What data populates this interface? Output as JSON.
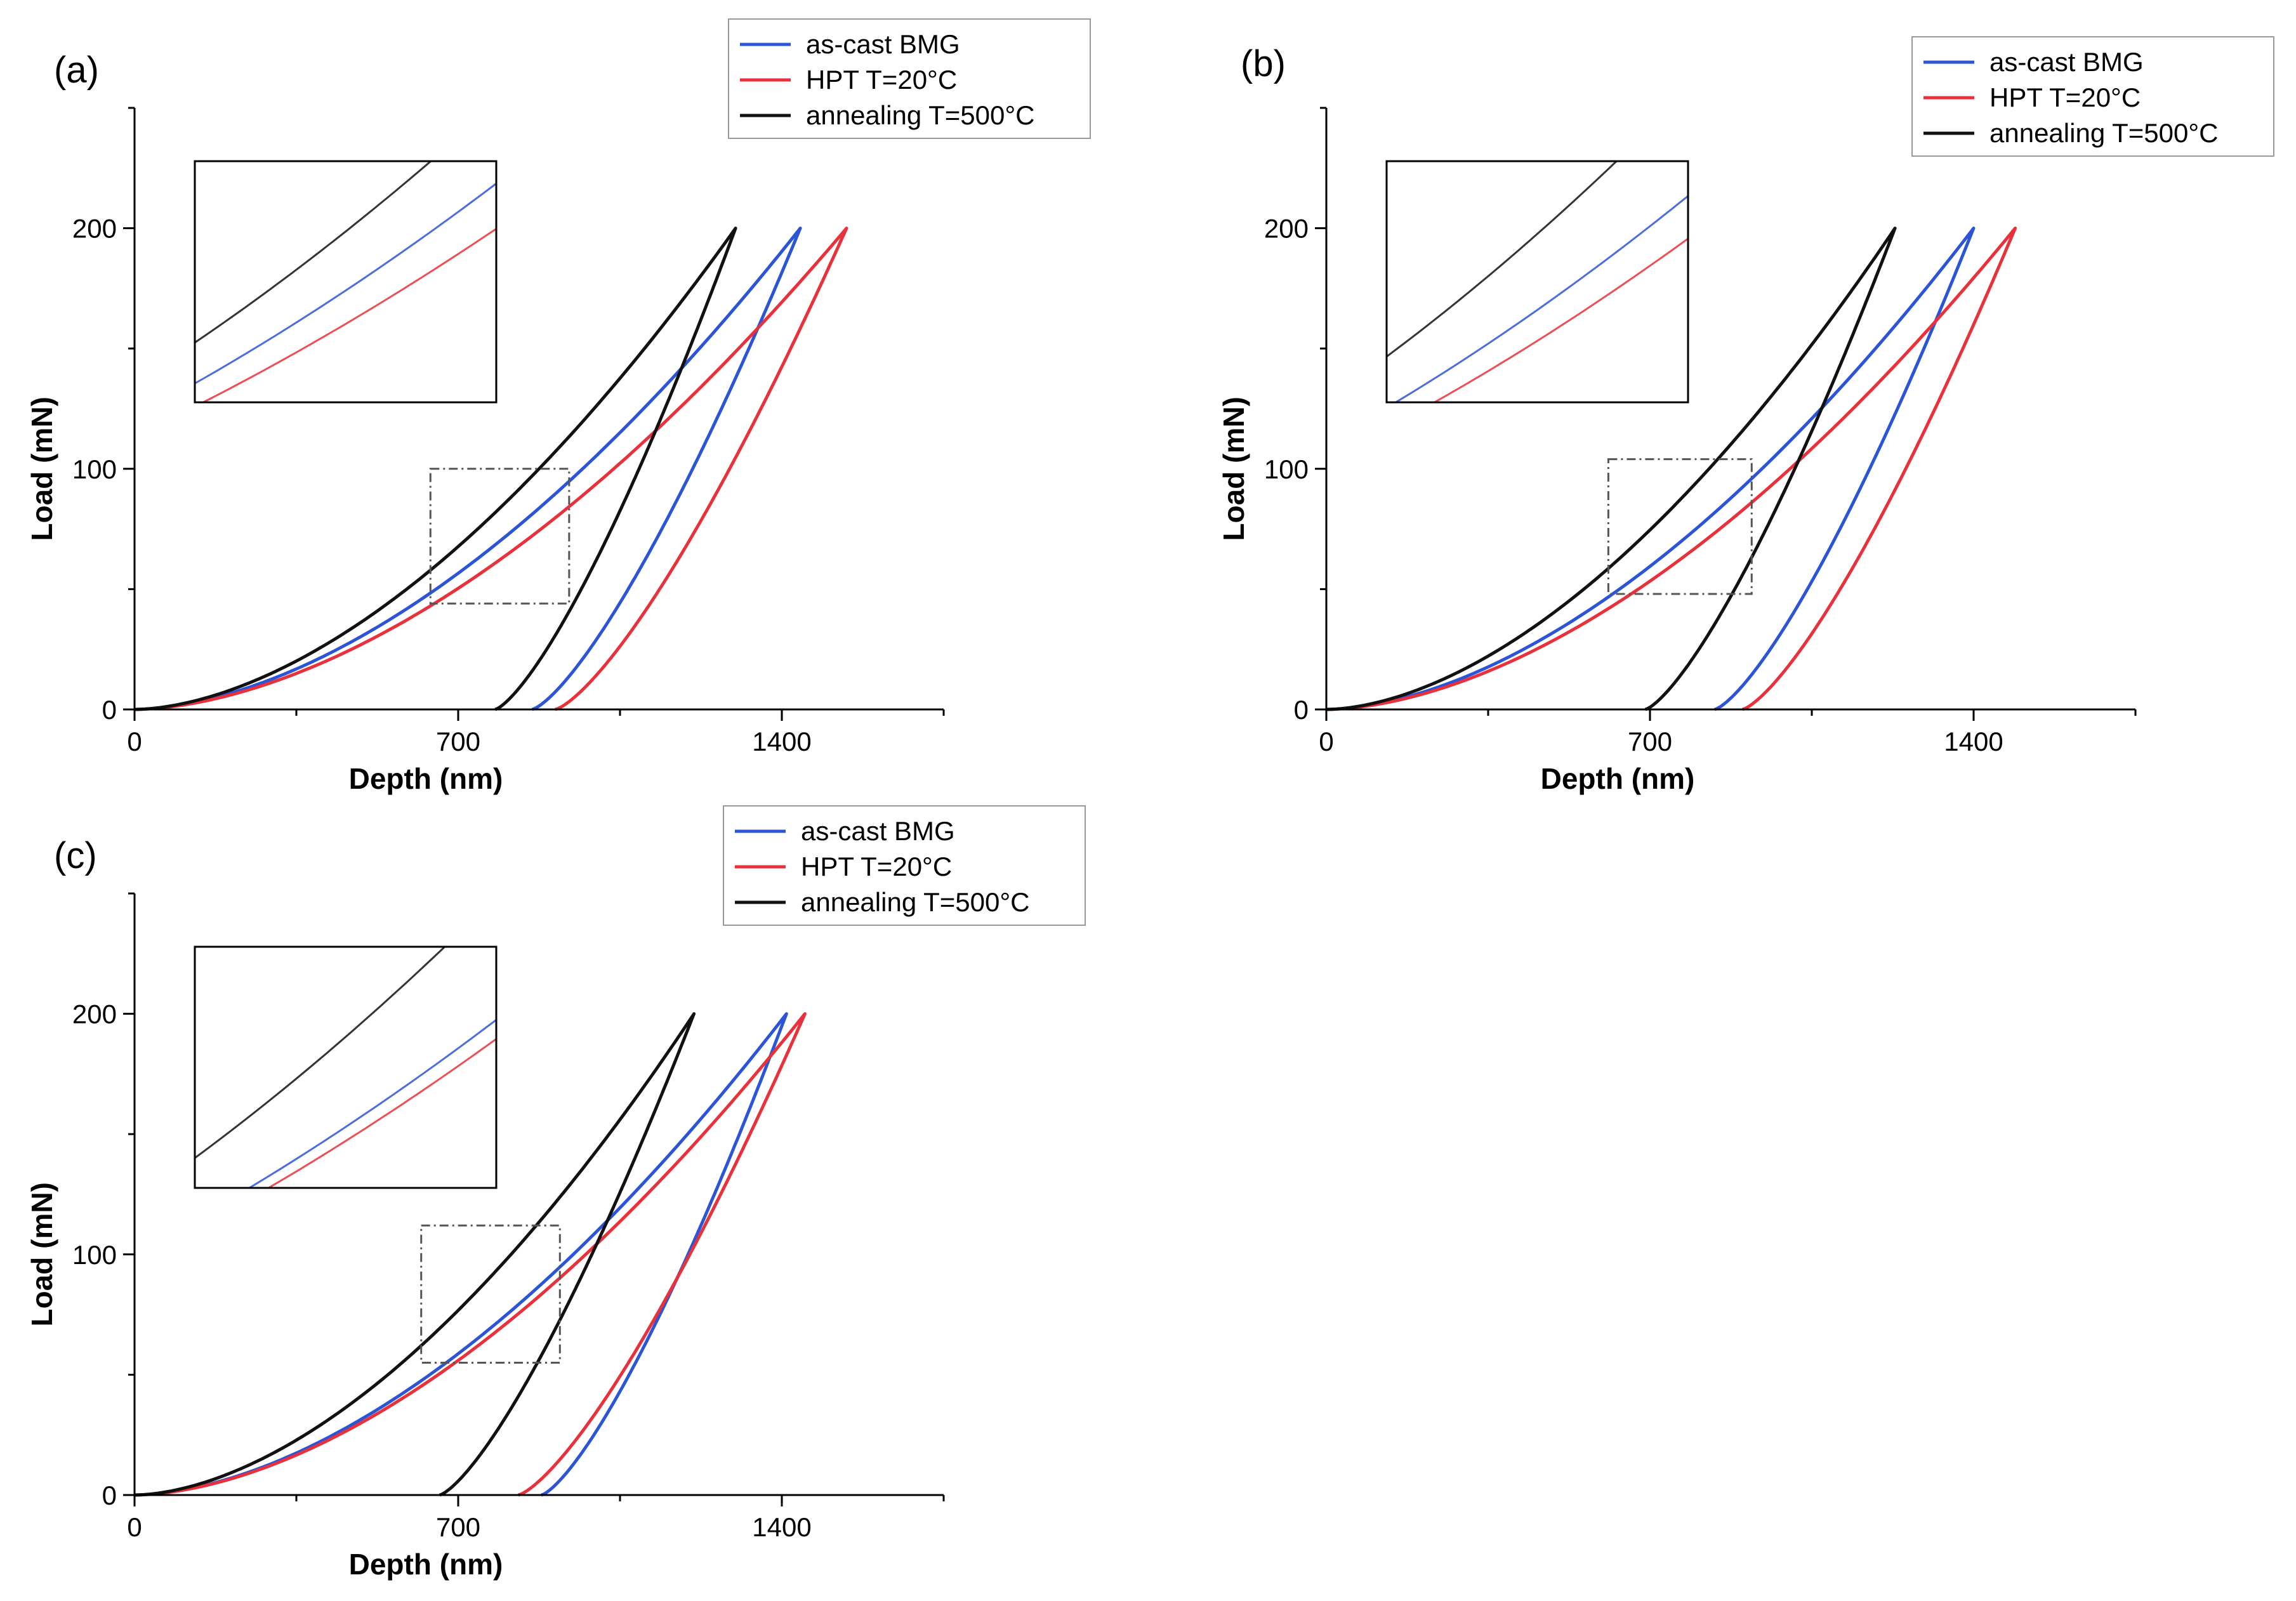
{
  "colors": {
    "as_cast": "#2b55d6",
    "hpt": "#e8313a",
    "annealing": "#111111",
    "axis": "#000000",
    "zoom_box": "#555555"
  },
  "chart_data": [
    {
      "panel_label": "(a)",
      "type": "line",
      "xlabel": "Depth (nm)",
      "ylabel": "Load (mN)",
      "xlim": [
        0,
        1750
      ],
      "ylim": [
        0,
        250
      ],
      "x_ticks": [
        "0",
        "700",
        "1400"
      ],
      "y_ticks": [
        "0",
        "100",
        "200"
      ],
      "legend": [
        "as-cast BMG",
        "HPT T=20°C",
        "annealing T=500°C"
      ],
      "legend_position": "top-right",
      "zoom_region": {
        "x": [
          640,
          940
        ],
        "y": [
          44,
          100
        ]
      },
      "series": [
        {
          "name": "as-cast BMG",
          "color_key": "as_cast",
          "loading": {
            "x_end": 1440,
            "p_max": 200,
            "exponent": 1.75
          },
          "unloading": {
            "h_final": 860,
            "p_max": 200,
            "x_max": 1440,
            "exponent": 1.35
          }
        },
        {
          "name": "HPT T=20°C",
          "color_key": "hpt",
          "loading": {
            "x_end": 1540,
            "p_max": 200,
            "exponent": 1.75
          },
          "unloading": {
            "h_final": 910,
            "p_max": 200,
            "x_max": 1540,
            "exponent": 1.35
          }
        },
        {
          "name": "annealing T=500°C",
          "color_key": "annealing",
          "loading": {
            "x_end": 1300,
            "p_max": 200,
            "exponent": 1.75
          },
          "unloading": {
            "h_final": 780,
            "p_max": 200,
            "x_max": 1300,
            "exponent": 1.35
          }
        }
      ]
    },
    {
      "panel_label": "(b)",
      "type": "line",
      "xlabel": "Depth (nm)",
      "ylabel": "Load (mN)",
      "xlim": [
        0,
        1750
      ],
      "ylim": [
        0,
        250
      ],
      "x_ticks": [
        "0",
        "700",
        "1400"
      ],
      "y_ticks": [
        "0",
        "100",
        "200"
      ],
      "legend": [
        "as-cast BMG",
        "HPT T=20°C",
        "annealing T=500°C"
      ],
      "legend_position": "top-right",
      "zoom_region": {
        "x": [
          610,
          920
        ],
        "y": [
          48,
          104
        ]
      },
      "series": [
        {
          "name": "as-cast BMG",
          "color_key": "as_cast",
          "loading": {
            "x_end": 1400,
            "p_max": 200,
            "exponent": 1.75
          },
          "unloading": {
            "h_final": 840,
            "p_max": 200,
            "x_max": 1400,
            "exponent": 1.35
          }
        },
        {
          "name": "HPT T=20°C",
          "color_key": "hpt",
          "loading": {
            "x_end": 1490,
            "p_max": 200,
            "exponent": 1.75
          },
          "unloading": {
            "h_final": 900,
            "p_max": 200,
            "x_max": 1490,
            "exponent": 1.35
          }
        },
        {
          "name": "annealing T=500°C",
          "color_key": "annealing",
          "loading": {
            "x_end": 1230,
            "p_max": 200,
            "exponent": 1.75
          },
          "unloading": {
            "h_final": 690,
            "p_max": 200,
            "x_max": 1230,
            "exponent": 1.35
          }
        }
      ]
    },
    {
      "panel_label": "(c)",
      "type": "line",
      "xlabel": "Depth (nm)",
      "ylabel": "Load (mN)",
      "xlim": [
        0,
        1750
      ],
      "ylim": [
        0,
        250
      ],
      "x_ticks": [
        "0",
        "700",
        "1400"
      ],
      "y_ticks": [
        "0",
        "100",
        "200"
      ],
      "legend": [
        "as-cast BMG",
        "HPT T=20°C",
        "annealing T=500°C"
      ],
      "legend_position": "top-right",
      "zoom_region": {
        "x": [
          620,
          920
        ],
        "y": [
          55,
          112
        ]
      },
      "series": [
        {
          "name": "as-cast BMG",
          "color_key": "as_cast",
          "loading": {
            "x_end": 1410,
            "p_max": 200,
            "exponent": 1.75
          },
          "unloading": {
            "h_final": 880,
            "p_max": 200,
            "x_max": 1410,
            "exponent": 1.35
          }
        },
        {
          "name": "HPT T=20°C",
          "color_key": "hpt",
          "loading": {
            "x_end": 1450,
            "p_max": 200,
            "exponent": 1.75
          },
          "unloading": {
            "h_final": 830,
            "p_max": 200,
            "x_max": 1450,
            "exponent": 1.35
          }
        },
        {
          "name": "annealing T=500°C",
          "color_key": "annealing",
          "loading": {
            "x_end": 1210,
            "p_max": 200,
            "exponent": 1.75
          },
          "unloading": {
            "h_final": 660,
            "p_max": 200,
            "x_max": 1210,
            "exponent": 1.35
          }
        }
      ]
    }
  ]
}
